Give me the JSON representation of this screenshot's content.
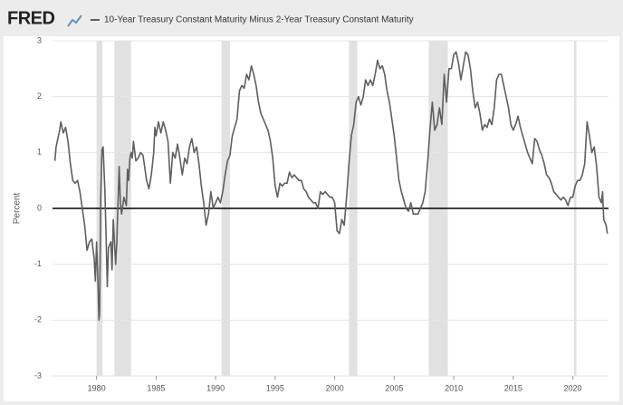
{
  "logo": "FRED",
  "chart_data": {
    "type": "line",
    "ylabel": "Percent",
    "xlim": [
      1976.3,
      2023.0
    ],
    "ylim": [
      -3,
      3
    ],
    "xticks": [
      1980,
      1985,
      1990,
      1995,
      2000,
      2005,
      2010,
      2015,
      2020
    ],
    "yticks": [
      -3,
      -2,
      -1,
      0,
      1,
      2,
      3
    ],
    "grid": true,
    "zero_line": true,
    "recession_color": "#e1e1e1",
    "recessions": [
      [
        1980.0,
        1980.5
      ],
      [
        1981.5,
        1982.9
      ],
      [
        1990.5,
        1991.2
      ],
      [
        2001.2,
        2001.9
      ],
      [
        2007.9,
        2009.5
      ],
      [
        2020.1,
        2020.3
      ]
    ],
    "x": [
      1976.5,
      1976.6,
      1976.9,
      1977.0,
      1977.2,
      1977.4,
      1977.6,
      1977.8,
      1978.0,
      1978.2,
      1978.4,
      1978.6,
      1978.8,
      1979.0,
      1979.2,
      1979.4,
      1979.6,
      1979.8,
      1979.9,
      1980.0,
      1980.1,
      1980.2,
      1980.25,
      1980.35,
      1980.45,
      1980.55,
      1980.7,
      1980.8,
      1980.9,
      1981.0,
      1981.2,
      1981.3,
      1981.4,
      1981.5,
      1981.6,
      1981.7,
      1981.8,
      1981.9,
      1982.0,
      1982.1,
      1982.3,
      1982.5,
      1982.6,
      1982.7,
      1982.8,
      1982.9,
      1983.0,
      1983.1,
      1983.3,
      1983.5,
      1983.7,
      1983.9,
      1984.0,
      1984.2,
      1984.4,
      1984.6,
      1984.8,
      1984.9,
      1985.0,
      1985.2,
      1985.4,
      1985.6,
      1985.8,
      1986.0,
      1986.2,
      1986.4,
      1986.6,
      1986.8,
      1987.0,
      1987.2,
      1987.4,
      1987.6,
      1987.8,
      1988.0,
      1988.2,
      1988.4,
      1988.6,
      1988.8,
      1989.0,
      1989.2,
      1989.4,
      1989.6,
      1989.8,
      1990.0,
      1990.2,
      1990.4,
      1990.6,
      1990.8,
      1991.0,
      1991.2,
      1991.4,
      1991.6,
      1991.8,
      1992.0,
      1992.2,
      1992.4,
      1992.6,
      1992.8,
      1993.0,
      1993.2,
      1993.4,
      1993.6,
      1993.8,
      1994.0,
      1994.2,
      1994.4,
      1994.6,
      1994.8,
      1995.0,
      1995.2,
      1995.4,
      1995.6,
      1995.8,
      1996.0,
      1996.2,
      1996.4,
      1996.6,
      1996.8,
      1997.0,
      1997.2,
      1997.4,
      1997.6,
      1997.8,
      1998.0,
      1998.2,
      1998.4,
      1998.6,
      1998.8,
      1999.0,
      1999.2,
      1999.4,
      1999.6,
      1999.8,
      2000.0,
      2000.2,
      2000.4,
      2000.6,
      2000.8,
      2001.0,
      2001.2,
      2001.4,
      2001.6,
      2001.8,
      2002.0,
      2002.2,
      2002.4,
      2002.6,
      2002.8,
      2003.0,
      2003.2,
      2003.4,
      2003.6,
      2003.8,
      2004.0,
      2004.2,
      2004.4,
      2004.6,
      2004.8,
      2005.0,
      2005.2,
      2005.4,
      2005.6,
      2005.8,
      2006.0,
      2006.2,
      2006.4,
      2006.6,
      2006.8,
      2007.0,
      2007.2,
      2007.4,
      2007.6,
      2007.8,
      2008.0,
      2008.2,
      2008.4,
      2008.6,
      2008.8,
      2009.0,
      2009.2,
      2009.4,
      2009.6,
      2009.8,
      2010.0,
      2010.2,
      2010.4,
      2010.6,
      2010.8,
      2011.0,
      2011.2,
      2011.4,
      2011.6,
      2011.8,
      2012.0,
      2012.2,
      2012.4,
      2012.6,
      2012.8,
      2013.0,
      2013.2,
      2013.4,
      2013.6,
      2013.8,
      2014.0,
      2014.2,
      2014.4,
      2014.6,
      2014.8,
      2015.0,
      2015.2,
      2015.4,
      2015.6,
      2015.8,
      2016.0,
      2016.2,
      2016.4,
      2016.6,
      2016.8,
      2017.0,
      2017.2,
      2017.4,
      2017.6,
      2017.8,
      2018.0,
      2018.2,
      2018.4,
      2018.6,
      2018.8,
      2019.0,
      2019.2,
      2019.4,
      2019.6,
      2019.8,
      2020.0,
      2020.2,
      2020.4,
      2020.6,
      2020.8,
      2021.0,
      2021.2,
      2021.4,
      2021.6,
      2021.8,
      2022.0,
      2022.2,
      2022.4,
      2022.5,
      2022.6,
      2022.8,
      2022.9
    ],
    "series": [
      {
        "name": "10-Year Treasury Constant Maturity Minus 2-Year Treasury Constant Maturity",
        "color": "#5f5f5f",
        "values": [
          0.85,
          1.1,
          1.4,
          1.55,
          1.35,
          1.45,
          1.2,
          0.8,
          0.5,
          0.45,
          0.5,
          0.3,
          0.0,
          -0.3,
          -0.75,
          -0.6,
          -0.55,
          -0.9,
          -1.3,
          -0.6,
          -1.2,
          -2.0,
          -1.9,
          0.2,
          1.05,
          1.1,
          0.3,
          -0.5,
          -1.4,
          -0.7,
          -0.6,
          -1.1,
          -0.2,
          -0.6,
          -1.0,
          -0.6,
          0.1,
          0.75,
          0.1,
          -0.1,
          0.2,
          0.05,
          0.7,
          0.5,
          0.9,
          1.0,
          0.9,
          1.2,
          0.85,
          0.9,
          1.0,
          0.95,
          0.8,
          0.5,
          0.35,
          0.6,
          1.0,
          1.45,
          1.3,
          1.55,
          1.35,
          1.55,
          1.4,
          1.2,
          0.45,
          1.0,
          0.9,
          1.15,
          0.9,
          0.6,
          0.9,
          0.8,
          1.1,
          1.25,
          1.0,
          1.1,
          0.8,
          0.4,
          0.1,
          -0.3,
          -0.1,
          0.3,
          0.0,
          0.1,
          0.2,
          0.1,
          0.3,
          0.6,
          0.85,
          0.95,
          1.3,
          1.45,
          1.6,
          2.1,
          2.2,
          2.15,
          2.4,
          2.3,
          2.55,
          2.4,
          2.2,
          1.9,
          1.7,
          1.6,
          1.5,
          1.4,
          1.2,
          0.9,
          0.4,
          0.2,
          0.45,
          0.4,
          0.45,
          0.45,
          0.65,
          0.55,
          0.6,
          0.55,
          0.5,
          0.5,
          0.35,
          0.3,
          0.2,
          0.15,
          0.1,
          0.1,
          0.0,
          0.3,
          0.25,
          0.3,
          0.25,
          0.2,
          0.2,
          0.1,
          -0.4,
          -0.45,
          -0.2,
          -0.3,
          0.2,
          0.8,
          1.3,
          1.5,
          1.9,
          2.0,
          1.85,
          2.0,
          2.3,
          2.2,
          2.3,
          2.2,
          2.4,
          2.65,
          2.5,
          2.55,
          2.4,
          2.1,
          1.9,
          1.6,
          1.3,
          0.9,
          0.5,
          0.3,
          0.15,
          0.0,
          -0.05,
          0.1,
          -0.1,
          -0.1,
          -0.1,
          0.0,
          0.1,
          0.3,
          0.8,
          1.4,
          1.9,
          1.4,
          1.5,
          1.8,
          1.5,
          2.4,
          1.9,
          2.5,
          2.5,
          2.75,
          2.8,
          2.6,
          2.3,
          2.55,
          2.8,
          2.75,
          2.5,
          2.1,
          1.8,
          1.9,
          1.7,
          1.4,
          1.5,
          1.45,
          1.6,
          1.5,
          1.8,
          2.3,
          2.4,
          2.4,
          2.2,
          2.0,
          1.8,
          1.5,
          1.4,
          1.5,
          1.65,
          1.45,
          1.3,
          1.15,
          1.0,
          0.9,
          0.8,
          1.25,
          1.2,
          1.05,
          0.95,
          0.8,
          0.6,
          0.55,
          0.45,
          0.3,
          0.25,
          0.2,
          0.15,
          0.2,
          0.15,
          0.05,
          0.2,
          0.2,
          0.4,
          0.5,
          0.5,
          0.6,
          0.8,
          1.55,
          1.3,
          1.0,
          1.1,
          0.75,
          0.2,
          0.1,
          0.3,
          -0.2,
          -0.3,
          -0.45
        ]
      }
    ]
  }
}
